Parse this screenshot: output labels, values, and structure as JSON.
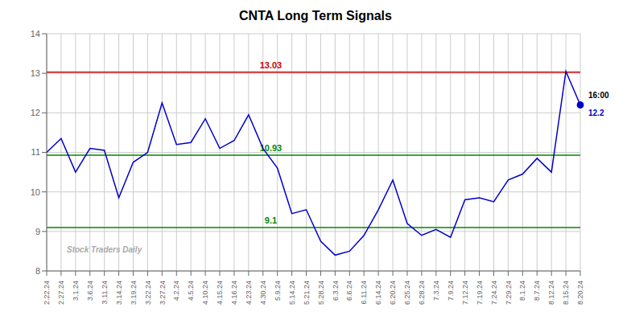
{
  "chart_data": {
    "type": "line",
    "title": "CNTA Long Term Signals",
    "categories": [
      "2.22.24",
      "2.27.24",
      "3.1.24",
      "3.6.24",
      "3.11.24",
      "3.14.24",
      "3.19.24",
      "3.22.24",
      "3.27.24",
      "4.2.24",
      "4.5.24",
      "4.10.24",
      "4.15.24",
      "4.16.24",
      "4.23.24",
      "4.30.24",
      "5.9.24",
      "5.14.24",
      "5.21.24",
      "5.28.24",
      "6.3.24",
      "6.6.24",
      "6.11.24",
      "6.14.24",
      "6.20.24",
      "6.25.24",
      "6.28.24",
      "7.3.24",
      "7.9.24",
      "7.12.24",
      "7.19.24",
      "7.24.24",
      "7.29.24",
      "8.1.24",
      "8.7.24",
      "8.12.24",
      "8.15.24",
      "8.20.24"
    ],
    "values": [
      11.0,
      11.35,
      10.5,
      11.1,
      11.05,
      9.85,
      10.75,
      11.0,
      12.25,
      11.2,
      11.25,
      11.85,
      11.1,
      11.3,
      11.95,
      11.1,
      10.6,
      9.45,
      9.55,
      8.75,
      8.4,
      8.5,
      8.9,
      9.55,
      10.3,
      9.2,
      8.9,
      9.05,
      8.85,
      9.8,
      9.85,
      9.75,
      10.3,
      10.45,
      10.85,
      10.5,
      13.05,
      12.2
    ],
    "color": "#0000cc",
    "ylim": [
      8.0,
      14.0
    ],
    "yticks": [
      8,
      9,
      10,
      11,
      12,
      13,
      14
    ],
    "grid": true,
    "reference_lines": [
      {
        "value": 13.03,
        "color": "#cc0000"
      },
      {
        "value": 10.93,
        "color": "#008800"
      },
      {
        "value": 9.1,
        "color": "#008800"
      }
    ],
    "annotations": [
      {
        "text": "16:00",
        "color": "#000000"
      },
      {
        "text": "12.2",
        "color": "#0000cc"
      }
    ],
    "watermark": "Stock Traders Daily"
  }
}
